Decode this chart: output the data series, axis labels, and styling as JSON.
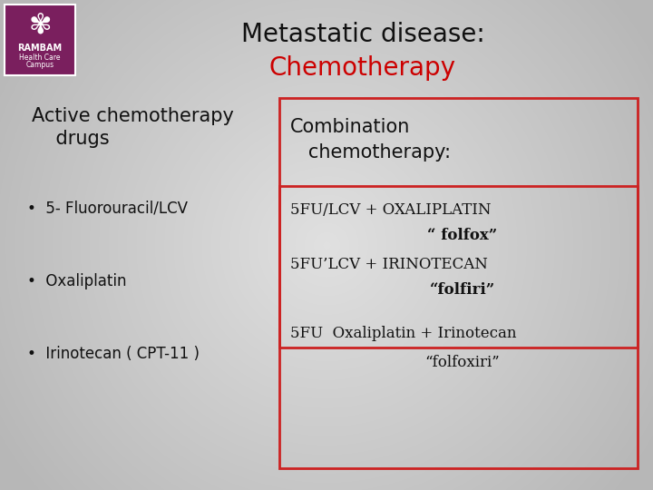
{
  "title_line1": "Metastatic disease:",
  "title_line2": "Chemotherapy",
  "title_color1": "#111111",
  "title_color2": "#cc0000",
  "bg_color_light": [
    0.86,
    0.86,
    0.86
  ],
  "bg_color_dark": [
    0.7,
    0.7,
    0.7
  ],
  "left_header_line1": "Active chemotherapy",
  "left_header_line2": "    drugs",
  "bullets": [
    "5- Fluorouracil/LCV",
    "Oxaliplatin",
    "Irinotecan ( CPT-11 )"
  ],
  "right_header_line1": "Combination",
  "right_header_line2": "   chemotherapy:",
  "inner_line1": "5FU/LCV + OXALIPLATIN",
  "inner_line2": "“ folfox”",
  "inner_line3": "5FU’LCV + IRINOTECAN",
  "inner_line4": "“folfiri”",
  "lower_line1": "5FU  Oxaliplatin + Irinotecan",
  "lower_line2": "“folfoxiri”",
  "red_color": "#cc2222",
  "logo_bg": "#7a1f5e",
  "font_size_title": 20,
  "font_size_header": 15,
  "font_size_body": 12
}
